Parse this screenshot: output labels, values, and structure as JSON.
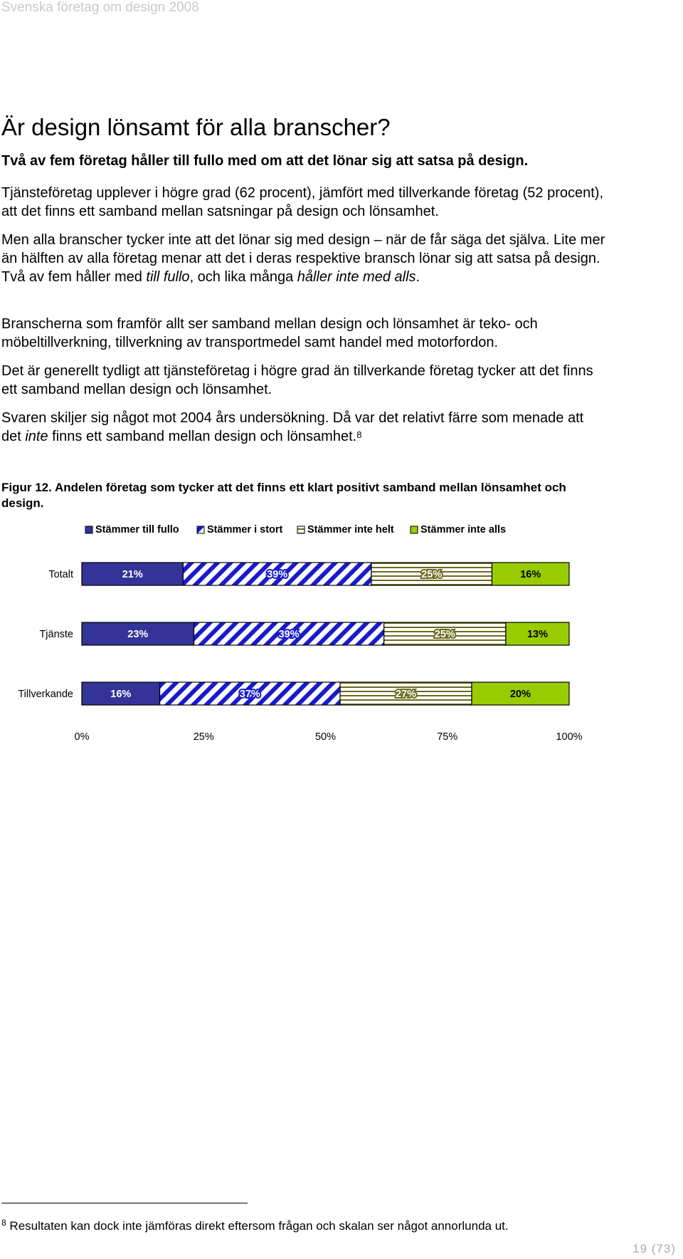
{
  "running_header": "Svenska företag om design 2008",
  "heading": "Är design lönsamt för alla branscher?",
  "lead": "Två av fem företag håller till fullo med om att det lönar sig att satsa på design.",
  "paragraphs": {
    "p1": "Tjänsteföretag upplever i högre grad (62 procent), jämfört med tillverkande företag (52 procent), att det finns ett samband mellan satsningar på design och lönsamhet.",
    "p2_a": "Men alla branscher tycker inte att det lönar sig med design – när de får säga det själva. Lite mer än hälften av alla företag menar att det i deras respektive bransch lönar sig att satsa på design. Två av fem håller med ",
    "p2_em1": "till fullo",
    "p2_b": ", och lika många ",
    "p2_em2": "håller inte med alls",
    "p2_c": ".",
    "p3": "Branscherna som framför allt ser samband mellan design och lönsamhet är teko- och möbeltillverkning, tillverkning av transportmedel samt handel med motorfordon.",
    "p4": "Det är generellt tydligt att tjänsteföretag i högre grad än tillverkande företag tycker att det finns ett samband mellan design och lönsamhet.",
    "p5_a": "Svaren skiljer sig något mot 2004 års undersökning. Då var det relativt färre som menade att det ",
    "p5_em": "inte",
    "p5_b": " finns ett samband mellan design och lönsamhet.",
    "p5_ref": "8"
  },
  "figure_caption": "Figur 12. Andelen företag som tycker att det finns ett klart positivt samband mellan lönsamhet och design.",
  "chart_data": {
    "type": "bar",
    "orientation": "horizontal-stacked-100",
    "categories": [
      "Totalt",
      "Tjänste",
      "Tillverkande"
    ],
    "series": [
      {
        "name": "Stämmer till fullo",
        "values": [
          21,
          23,
          16
        ],
        "labels": [
          "21%",
          "23%",
          "16%"
        ],
        "color": "#333399",
        "pattern": "solid",
        "label_color": "#ffffff"
      },
      {
        "name": "Stämmer i stort",
        "values": [
          39,
          39,
          37
        ],
        "labels": [
          "39%",
          "39%",
          "37%"
        ],
        "color": "#1a1acc",
        "pattern": "diagonal-stripes",
        "label_color": "#ffffff"
      },
      {
        "name": "Stämmer inte helt",
        "values": [
          25,
          25,
          27
        ],
        "labels": [
          "25%",
          "25%",
          "27%"
        ],
        "color": "#6b6b1f",
        "pattern": "horizontal-stripes",
        "label_color": "#ffffff"
      },
      {
        "name": "Stämmer inte alls",
        "values": [
          16,
          13,
          20
        ],
        "labels": [
          "16%",
          "13%",
          "20%"
        ],
        "color": "#99cc00",
        "pattern": "solid",
        "label_color": "#000000"
      }
    ],
    "xticks": [
      "0%",
      "25%",
      "50%",
      "75%",
      "100%"
    ],
    "xlim": [
      0,
      100
    ],
    "legend_position": "top",
    "grid": false
  },
  "footnote": {
    "ref": "8",
    "text": "Resultaten kan dock inte jämföras direkt eftersom frågan och skalan ser något annorlunda ut."
  },
  "page_number": "19 (73)"
}
